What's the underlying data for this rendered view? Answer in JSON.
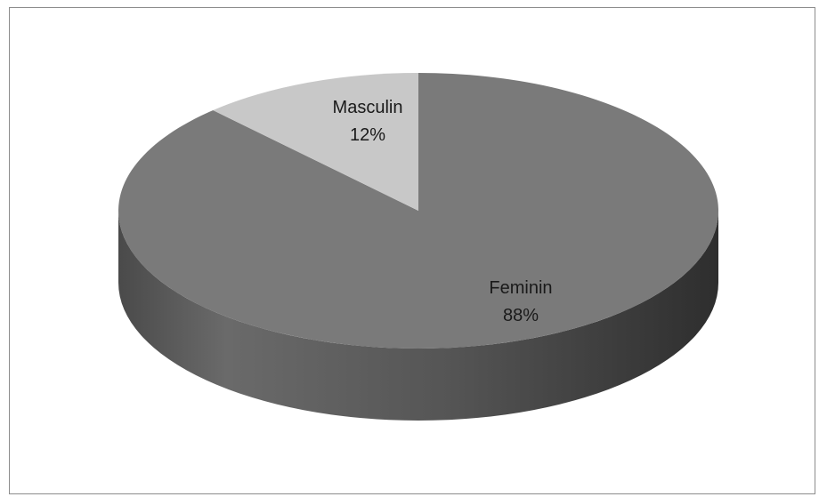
{
  "chart_data": {
    "type": "pie",
    "style": "3d",
    "title": "",
    "slices": [
      {
        "label": "Feminin",
        "value": 88,
        "percent_label": "88%",
        "color": "#7a7a7a",
        "side_color": "#5a5a5a"
      },
      {
        "label": "Masculin",
        "value": 12,
        "percent_label": "12%",
        "color": "#c8c8c8",
        "side_color": "#a8a8a8"
      }
    ],
    "legend": "none"
  }
}
